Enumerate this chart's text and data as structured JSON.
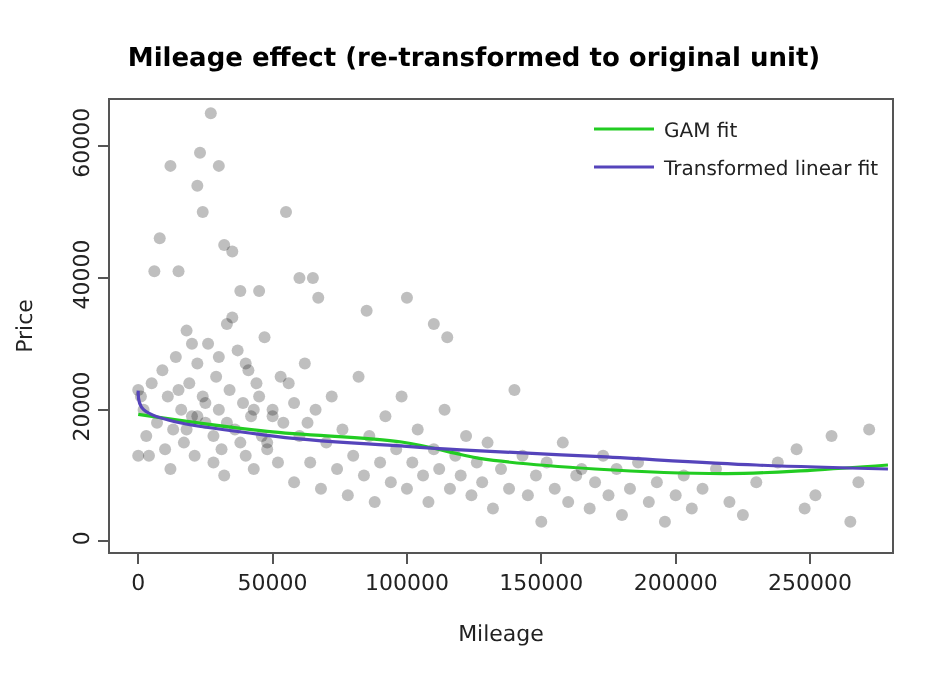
{
  "chart_data": {
    "type": "scatter",
    "title": "Mileage effect (re-transformed to original unit)",
    "xlabel": "Mileage",
    "ylabel": "Price",
    "xlim": [
      -10500,
      280500
    ],
    "ylim": [
      -1600,
      67000
    ],
    "xticks": [
      0,
      50000,
      100000,
      150000,
      200000,
      250000
    ],
    "yticks": [
      0,
      20000,
      40000,
      60000
    ],
    "legend": "top right",
    "series": [
      {
        "color": "#000000",
        "marker": "circle",
        "x": [
          27000,
          23000,
          12000,
          30000,
          22000,
          24000,
          55000,
          8000,
          32000,
          35000,
          6000,
          15000,
          38000,
          45000,
          60000,
          65000,
          67000,
          100000,
          85000,
          110000,
          115000,
          2000,
          3000,
          5000,
          7000,
          9000,
          10000,
          11000,
          13000,
          14000,
          16000,
          17000,
          18000,
          19000,
          20000,
          21000,
          22000,
          24000,
          25000,
          26000,
          28000,
          29000,
          30000,
          31000,
          33000,
          34000,
          36000,
          37000,
          39000,
          40000,
          41000,
          42000,
          43000,
          44000,
          46000,
          47000,
          48000,
          50000,
          52000,
          54000,
          56000,
          58000,
          60000,
          62000,
          64000,
          66000,
          68000,
          70000,
          72000,
          74000,
          76000,
          78000,
          80000,
          82000,
          84000,
          86000,
          88000,
          90000,
          92000,
          94000,
          96000,
          98000,
          100000,
          102000,
          104000,
          106000,
          108000,
          110000,
          112000,
          114000,
          116000,
          118000,
          120000,
          122000,
          124000,
          126000,
          128000,
          130000,
          132000,
          135000,
          138000,
          140000,
          143000,
          145000,
          148000,
          150000,
          152000,
          155000,
          158000,
          160000,
          163000,
          165000,
          168000,
          170000,
          173000,
          175000,
          178000,
          180000,
          183000,
          186000,
          190000,
          193000,
          196000,
          200000,
          203000,
          206000,
          210000,
          215000,
          220000,
          225000,
          230000,
          238000,
          245000,
          248000,
          252000,
          258000,
          265000,
          268000,
          272000,
          30000,
          35000,
          20000,
          40000,
          45000,
          50000,
          15000,
          25000,
          33000,
          43000,
          18000,
          28000,
          38000,
          53000,
          58000,
          63000,
          12000,
          22000,
          32000,
          48000,
          0,
          0,
          1000,
          4000
        ],
        "values": [
          65000,
          59000,
          57000,
          57000,
          54000,
          50000,
          50000,
          46000,
          45000,
          44000,
          41000,
          41000,
          38000,
          38000,
          40000,
          40000,
          37000,
          37000,
          35000,
          33000,
          31000,
          20000,
          16000,
          24000,
          18000,
          26000,
          14000,
          22000,
          17000,
          28000,
          20000,
          15000,
          32000,
          24000,
          19000,
          13000,
          27000,
          22000,
          18000,
          30000,
          16000,
          25000,
          20000,
          14000,
          33000,
          23000,
          17000,
          29000,
          21000,
          13000,
          26000,
          19000,
          11000,
          24000,
          16000,
          31000,
          14000,
          20000,
          12000,
          18000,
          24000,
          9000,
          16000,
          27000,
          12000,
          20000,
          8000,
          15000,
          22000,
          11000,
          17000,
          7000,
          13000,
          25000,
          10000,
          16000,
          6000,
          12000,
          19000,
          9000,
          14000,
          22000,
          8000,
          12000,
          17000,
          10000,
          6000,
          14000,
          11000,
          20000,
          8000,
          13000,
          10000,
          16000,
          7000,
          12000,
          9000,
          15000,
          5000,
          11000,
          8000,
          23000,
          13000,
          7000,
          10000,
          3000,
          12000,
          8000,
          15000,
          6000,
          10000,
          11000,
          5000,
          9000,
          13000,
          7000,
          11000,
          4000,
          8000,
          12000,
          6000,
          9000,
          3000,
          7000,
          10000,
          5000,
          8000,
          11000,
          6000,
          4000,
          9000,
          12000,
          14000,
          5000,
          7000,
          16000,
          3000,
          9000,
          17000,
          28000,
          34000,
          30000,
          27000,
          22000,
          19000,
          23000,
          21000,
          18000,
          20000,
          17000,
          12000,
          15000,
          25000,
          21000,
          18000,
          11000,
          19000,
          10000,
          15000,
          13000,
          23000,
          22000,
          13000
        ]
      },
      {
        "type": "line",
        "name": "GAM fit",
        "color": "#22cc22",
        "x": [
          0,
          48000,
          98000,
          120000,
          127000,
          170000,
          219000,
          250000,
          279000
        ],
        "values": [
          19300,
          16700,
          15100,
          13200,
          12600,
          11000,
          10300,
          10800,
          11600
        ]
      },
      {
        "type": "line",
        "name": "Transformed linear fit",
        "color": "#5544bb",
        "x": [
          0,
          2000,
          48000,
          98000,
          120000,
          170000,
          230000,
          279000
        ],
        "values": [
          22900,
          20000,
          16100,
          14500,
          13900,
          12900,
          11600,
          11000
        ]
      }
    ]
  }
}
